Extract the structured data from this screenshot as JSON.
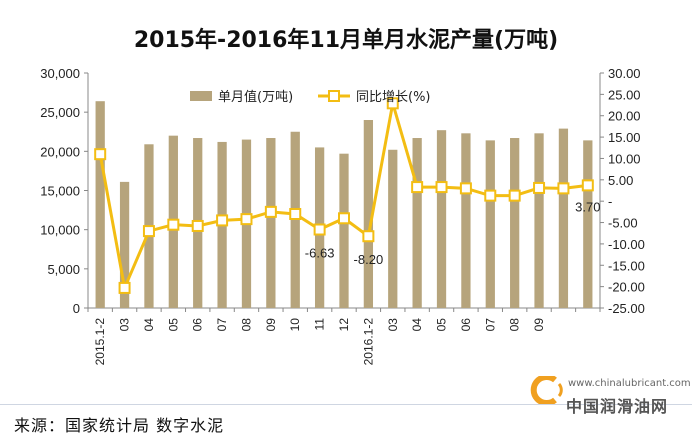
{
  "title": "2015年-2016年11月单月水泥产量(万吨)",
  "source": "来源：国家统计局 数字水泥",
  "watermark": {
    "url": "www.chinalubricant.com",
    "name": "中国润滑油网"
  },
  "colors": {
    "bar": "#b6a47c",
    "line": "#f3bd13",
    "marker_fill": "#ffffff",
    "axis": "#888888",
    "grid": "#d9d9d9"
  },
  "chart_data": {
    "type": "bar+line",
    "categories": [
      "2015.1-2",
      "03",
      "04",
      "05",
      "06",
      "07",
      "08",
      "09",
      "10",
      "11",
      "12",
      "2016.1-2",
      "03",
      "04",
      "05",
      "06",
      "07",
      "08",
      "09",
      "",
      ""
    ],
    "series": [
      {
        "name": "单月值(万吨)",
        "type": "bar",
        "axis": "left",
        "values": [
          26400,
          16100,
          20900,
          22000,
          21700,
          21200,
          21500,
          21700,
          22500,
          20500,
          19700,
          24000,
          20200,
          21700,
          22700,
          22300,
          21400,
          21700,
          22300,
          22900,
          21400
        ]
      },
      {
        "name": "同比增长(%)",
        "type": "line",
        "axis": "right",
        "values": [
          11.0,
          -20.3,
          -7.0,
          -5.5,
          -5.8,
          -4.5,
          -4.2,
          -2.5,
          -3.0,
          -6.63,
          -4.0,
          -8.2,
          22.9,
          3.3,
          3.3,
          3.0,
          1.3,
          1.3,
          3.1,
          3.0,
          3.7
        ]
      }
    ],
    "data_labels": [
      {
        "series": 1,
        "index": 9,
        "text": "-6.63"
      },
      {
        "series": 1,
        "index": 11,
        "text": "-8.20"
      },
      {
        "series": 1,
        "index": 20,
        "text": "3.70"
      }
    ],
    "y_left": {
      "range": [
        0,
        30000
      ],
      "ticks": [
        "0",
        "5,000",
        "10,000",
        "15,000",
        "20,000",
        "25,000",
        "30,000"
      ]
    },
    "y_right": {
      "range": [
        -25,
        30
      ],
      "ticks": [
        "-25.00",
        "-20.00",
        "-15.00",
        "-10.00",
        "-5.00",
        "-",
        "5.00",
        "10.00",
        "15.00",
        "20.00",
        "25.00",
        "30.00"
      ]
    },
    "legend_position": "top-center",
    "grid": false
  }
}
